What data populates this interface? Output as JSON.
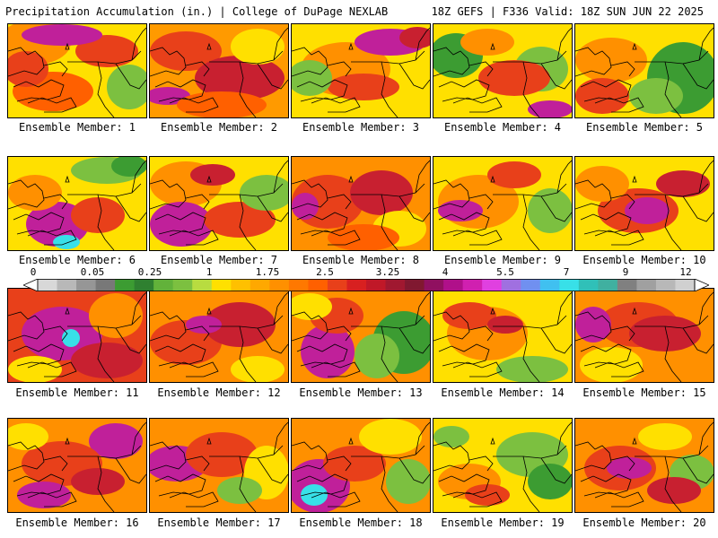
{
  "header": {
    "title_left": "Precipitation Accumulation (in.) | College of DuPage NEXLAB",
    "title_right": "18Z GEFS | F336 Valid: 18Z SUN JUN 22 2025"
  },
  "panels": [
    {
      "label": "Ensemble Member: 1",
      "base": "#ffe000",
      "blobs": [
        [
          "#ff9000",
          30,
          20,
          40,
          25
        ],
        [
          "#e8401a",
          110,
          30,
          35,
          18
        ],
        [
          "#c0209a",
          60,
          12,
          45,
          12
        ],
        [
          "#ff6000",
          50,
          75,
          45,
          22
        ],
        [
          "#7cc040",
          135,
          70,
          25,
          25
        ],
        [
          "#e8401a",
          20,
          50,
          25,
          20
        ]
      ]
    },
    {
      "label": "Ensemble Member: 2",
      "base": "#ff9a00",
      "blobs": [
        [
          "#e8401a",
          40,
          30,
          40,
          22
        ],
        [
          "#c82030",
          100,
          60,
          50,
          25
        ],
        [
          "#ffe000",
          120,
          25,
          30,
          20
        ],
        [
          "#c0209a",
          20,
          80,
          25,
          10
        ],
        [
          "#ff6000",
          80,
          90,
          50,
          15
        ]
      ]
    },
    {
      "label": "Ensemble Member: 3",
      "base": "#ffe000",
      "blobs": [
        [
          "#ff9000",
          60,
          50,
          50,
          30
        ],
        [
          "#c0209a",
          110,
          20,
          40,
          15
        ],
        [
          "#e8401a",
          80,
          70,
          40,
          15
        ],
        [
          "#7cc040",
          20,
          60,
          25,
          20
        ],
        [
          "#c82030",
          140,
          15,
          20,
          12
        ]
      ]
    },
    {
      "label": "Ensemble Member: 4",
      "base": "#ffe000",
      "blobs": [
        [
          "#3c9c32",
          25,
          35,
          30,
          25
        ],
        [
          "#7cc040",
          120,
          50,
          30,
          25
        ],
        [
          "#e8401a",
          90,
          60,
          40,
          20
        ],
        [
          "#c0209a",
          130,
          95,
          25,
          10
        ],
        [
          "#ff9000",
          60,
          20,
          30,
          15
        ]
      ]
    },
    {
      "label": "Ensemble Member: 5",
      "base": "#ffe000",
      "blobs": [
        [
          "#3c9c32",
          120,
          60,
          40,
          40
        ],
        [
          "#7cc040",
          90,
          80,
          30,
          20
        ],
        [
          "#ff9000",
          40,
          40,
          40,
          25
        ],
        [
          "#e8401a",
          30,
          80,
          30,
          20
        ]
      ]
    },
    {
      "label": "Ensemble Member: 6",
      "base": "#ffe000",
      "blobs": [
        [
          "#7cc040",
          110,
          15,
          40,
          15
        ],
        [
          "#3c9c32",
          135,
          10,
          20,
          12
        ],
        [
          "#c0209a",
          55,
          75,
          35,
          25
        ],
        [
          "#38e0e8",
          65,
          95,
          15,
          8
        ],
        [
          "#ff9000",
          30,
          40,
          30,
          20
        ],
        [
          "#e8401a",
          100,
          65,
          30,
          20
        ]
      ]
    },
    {
      "label": "Ensemble Member: 7",
      "base": "#ffe000",
      "blobs": [
        [
          "#ff9000",
          40,
          30,
          40,
          25
        ],
        [
          "#c0209a",
          35,
          75,
          35,
          25
        ],
        [
          "#e8401a",
          100,
          70,
          40,
          20
        ],
        [
          "#7cc040",
          130,
          40,
          30,
          20
        ],
        [
          "#c82030",
          70,
          20,
          25,
          12
        ]
      ]
    },
    {
      "label": "Ensemble Member: 8",
      "base": "#ff9000",
      "blobs": [
        [
          "#e8401a",
          40,
          50,
          40,
          30
        ],
        [
          "#c82030",
          100,
          40,
          35,
          25
        ],
        [
          "#ffe000",
          120,
          80,
          30,
          20
        ],
        [
          "#c0209a",
          15,
          55,
          15,
          15
        ],
        [
          "#ff6000",
          80,
          90,
          40,
          15
        ]
      ]
    },
    {
      "label": "Ensemble Member: 9",
      "base": "#ffe000",
      "blobs": [
        [
          "#ff9000",
          50,
          50,
          45,
          30
        ],
        [
          "#c0209a",
          30,
          60,
          25,
          12
        ],
        [
          "#e8401a",
          90,
          20,
          30,
          15
        ],
        [
          "#7cc040",
          130,
          60,
          25,
          25
        ]
      ]
    },
    {
      "label": "Ensemble Member: 10",
      "base": "#ffe000",
      "blobs": [
        [
          "#e8401a",
          70,
          60,
          45,
          25
        ],
        [
          "#c0209a",
          80,
          60,
          25,
          15
        ],
        [
          "#ff9000",
          30,
          30,
          30,
          20
        ],
        [
          "#c82030",
          120,
          30,
          30,
          15
        ]
      ]
    },
    {
      "label": "Ensemble Member: 11",
      "base": "#e8401a",
      "blobs": [
        [
          "#c0209a",
          60,
          50,
          45,
          30
        ],
        [
          "#38e0e8",
          70,
          55,
          10,
          10
        ],
        [
          "#ff9000",
          120,
          30,
          30,
          25
        ],
        [
          "#c82030",
          110,
          80,
          40,
          20
        ],
        [
          "#ffe000",
          30,
          90,
          30,
          15
        ]
      ]
    },
    {
      "label": "Ensemble Member: 12",
      "base": "#ff9000",
      "blobs": [
        [
          "#e8401a",
          40,
          60,
          40,
          25
        ],
        [
          "#c82030",
          100,
          40,
          40,
          25
        ],
        [
          "#ffe000",
          120,
          90,
          30,
          15
        ],
        [
          "#c0209a",
          60,
          40,
          20,
          10
        ]
      ]
    },
    {
      "label": "Ensemble Member: 13",
      "base": "#ff9000",
      "blobs": [
        [
          "#3c9c32",
          125,
          60,
          35,
          35
        ],
        [
          "#7cc040",
          95,
          75,
          25,
          25
        ],
        [
          "#c0209a",
          40,
          70,
          30,
          30
        ],
        [
          "#e8401a",
          50,
          30,
          30,
          20
        ],
        [
          "#ffe000",
          20,
          20,
          25,
          15
        ]
      ]
    },
    {
      "label": "Ensemble Member: 14",
      "base": "#ffe000",
      "blobs": [
        [
          "#ff9000",
          60,
          50,
          45,
          30
        ],
        [
          "#e8401a",
          40,
          30,
          30,
          15
        ],
        [
          "#7cc040",
          110,
          90,
          40,
          15
        ],
        [
          "#c82030",
          80,
          40,
          20,
          10
        ]
      ]
    },
    {
      "label": "Ensemble Member: 15",
      "base": "#ff9000",
      "blobs": [
        [
          "#e8401a",
          70,
          40,
          45,
          25
        ],
        [
          "#c0209a",
          20,
          40,
          20,
          20
        ],
        [
          "#c82030",
          100,
          50,
          40,
          20
        ],
        [
          "#ffe000",
          40,
          85,
          35,
          20
        ]
      ]
    },
    {
      "label": "Ensemble Member: 16",
      "base": "#ff9000",
      "blobs": [
        [
          "#c0209a",
          120,
          25,
          30,
          20
        ],
        [
          "#e8401a",
          60,
          50,
          45,
          25
        ],
        [
          "#c0209a",
          40,
          85,
          30,
          15
        ],
        [
          "#ffe000",
          20,
          20,
          25,
          15
        ],
        [
          "#c82030",
          100,
          70,
          30,
          15
        ]
      ]
    },
    {
      "label": "Ensemble Member: 17",
      "base": "#ff9000",
      "blobs": [
        [
          "#c0209a",
          30,
          50,
          35,
          20
        ],
        [
          "#e8401a",
          80,
          40,
          40,
          25
        ],
        [
          "#ffe000",
          130,
          60,
          25,
          30
        ],
        [
          "#7cc040",
          100,
          80,
          25,
          15
        ]
      ]
    },
    {
      "label": "Ensemble Member: 18",
      "base": "#ff9000",
      "blobs": [
        [
          "#c0209a",
          30,
          75,
          35,
          30
        ],
        [
          "#38e0e8",
          25,
          85,
          15,
          12
        ],
        [
          "#e8401a",
          70,
          50,
          35,
          20
        ],
        [
          "#ffe000",
          110,
          20,
          35,
          20
        ],
        [
          "#7cc040",
          130,
          70,
          25,
          25
        ]
      ]
    },
    {
      "label": "Ensemble Member: 19",
      "base": "#ffe000",
      "blobs": [
        [
          "#7cc040",
          110,
          40,
          40,
          25
        ],
        [
          "#3c9c32",
          130,
          70,
          25,
          20
        ],
        [
          "#ff9000",
          40,
          70,
          35,
          20
        ],
        [
          "#e8401a",
          60,
          85,
          25,
          12
        ],
        [
          "#7cc040",
          20,
          20,
          20,
          12
        ]
      ]
    },
    {
      "label": "Ensemble Member: 20",
      "base": "#ff9000",
      "blobs": [
        [
          "#e8401a",
          50,
          55,
          40,
          25
        ],
        [
          "#c0209a",
          60,
          55,
          25,
          12
        ],
        [
          "#ffe000",
          100,
          20,
          30,
          15
        ],
        [
          "#7cc040",
          130,
          60,
          25,
          20
        ],
        [
          "#c82030",
          110,
          80,
          30,
          15
        ]
      ]
    }
  ],
  "colorbar": {
    "colors": [
      "#d8d8d8",
      "#b8b8b8",
      "#969696",
      "#787878",
      "#3c9c32",
      "#2f8030",
      "#62b23a",
      "#7cc040",
      "#b8dc40",
      "#ffe000",
      "#ffc000",
      "#ffa800",
      "#ff9000",
      "#ff7800",
      "#ff6000",
      "#e8401a",
      "#d82020",
      "#c01828",
      "#a01830",
      "#801830",
      "#901060",
      "#b0108a",
      "#d020b0",
      "#e040e0",
      "#a070e0",
      "#7090f0",
      "#40c0f0",
      "#38e0e8",
      "#30c0b8",
      "#40b0a0",
      "#808080",
      "#a0a0a0",
      "#b8b8b8",
      "#d0d0d0"
    ],
    "labels": [
      "0",
      "0.05",
      "0.25",
      "1",
      "1.75",
      "2.5",
      "3.25",
      "4",
      "5.5",
      "7",
      "9",
      "12"
    ]
  }
}
